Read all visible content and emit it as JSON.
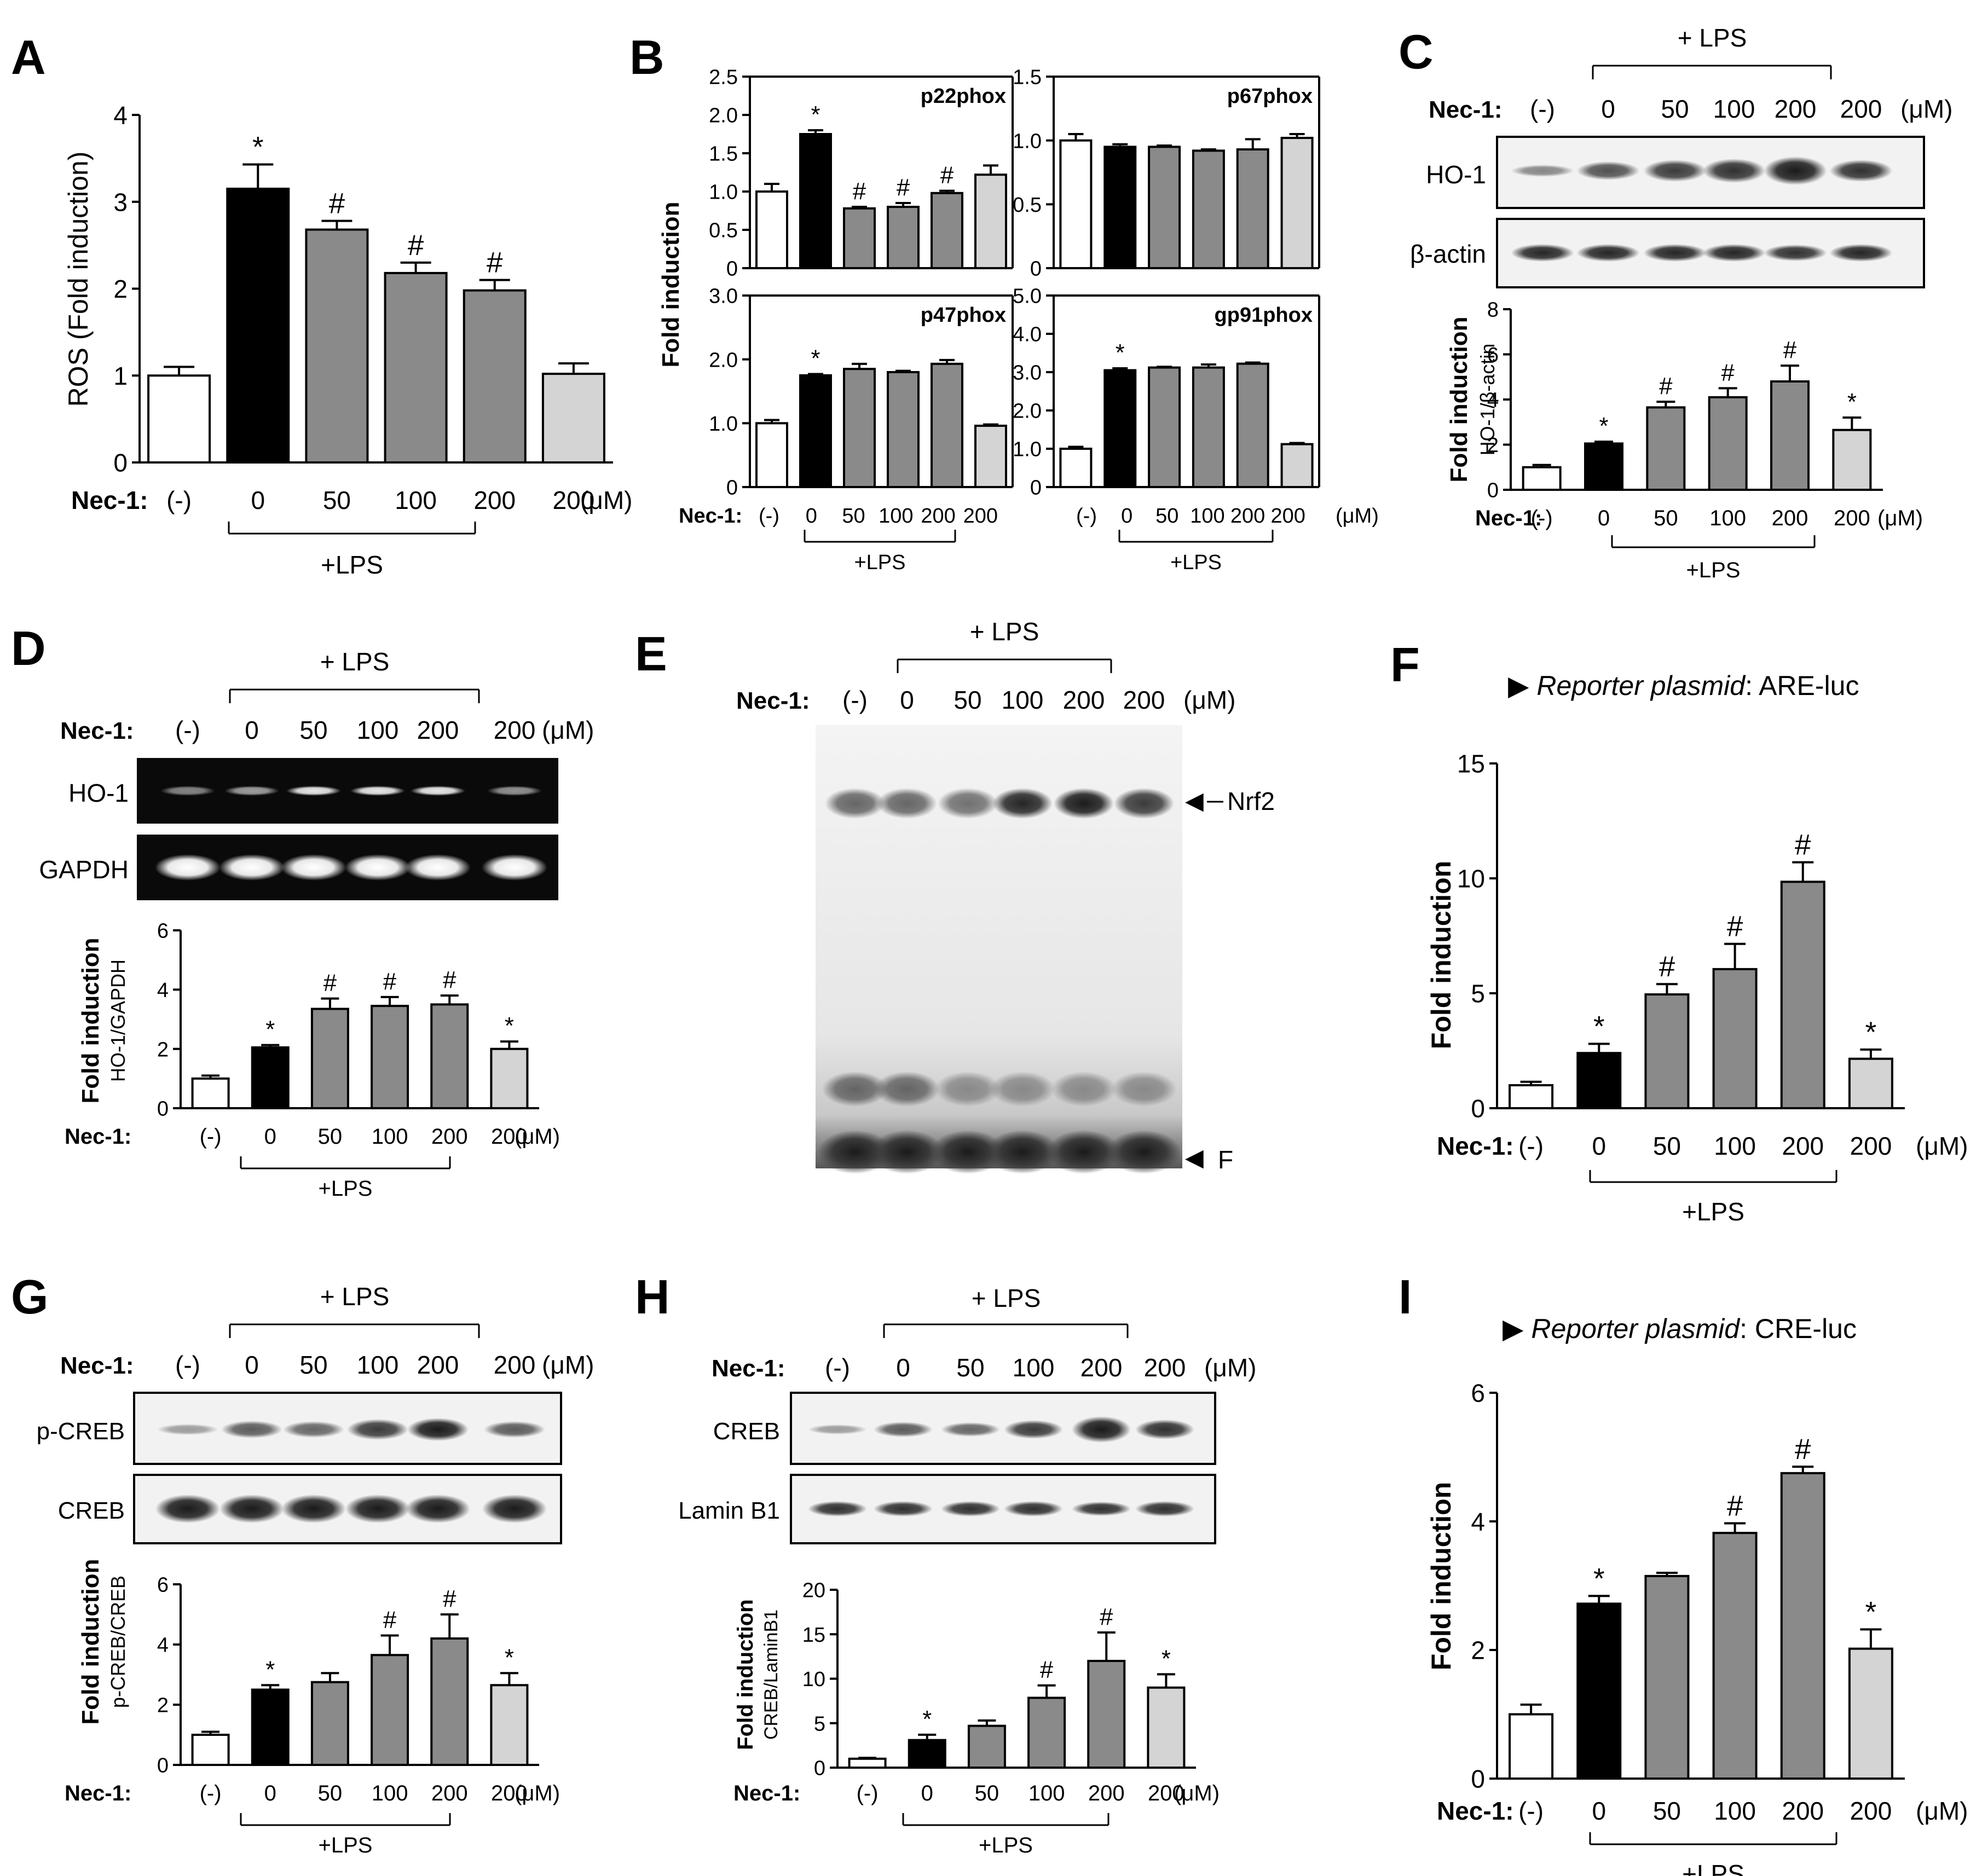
{
  "colors": {
    "white": "#ffffff",
    "black": "#000000",
    "gray": "#8a8a8a",
    "light": "#d4d4d4"
  },
  "common": {
    "nec1_label": "Nec-1:",
    "conc": [
      "(-)",
      "0",
      "50",
      "100",
      "200",
      "200"
    ],
    "unit": "(μM)",
    "plus_lps": "+LPS",
    "plus_lps_sp": "+ LPS"
  },
  "panels": {
    "A": {
      "letter": "A",
      "ylabel": "ROS (Fold induction)"
    },
    "B": {
      "letter": "B",
      "ylabel": "Fold induction"
    },
    "C": {
      "letter": "C",
      "blots": [
        "HO-1",
        "β-actin"
      ],
      "ylabel": "Fold induction",
      "ylabel2": "HO-1/β-actin"
    },
    "D": {
      "letter": "D",
      "blots": [
        "HO-1",
        "GAPDH"
      ],
      "ylabel": "Fold induction",
      "ylabel2": "HO-1/GAPDH"
    },
    "E": {
      "letter": "E",
      "nrf2": "Nrf2",
      "free": "F"
    },
    "F": {
      "letter": "F",
      "reporter_label": "Reporter plasmid",
      "reporter_value": ": ARE-luc",
      "ylabel": "Fold induction"
    },
    "G": {
      "letter": "G",
      "blots": [
        "p-CREB",
        "CREB"
      ],
      "ylabel": "Fold induction",
      "ylabel2": "p-CREB/CREB"
    },
    "H": {
      "letter": "H",
      "blots": [
        "CREB",
        "Lamin B1"
      ],
      "ylabel": "Fold induction",
      "ylabel2": "CREB/LaminB1"
    },
    "I": {
      "letter": "I",
      "reporter_label": "Reporter plasmid",
      "reporter_value": ": CRE-luc",
      "ylabel": "Fold induction"
    }
  },
  "chart_data": [
    {
      "id": "A",
      "type": "bar",
      "categories": [
        "(-)",
        "0",
        "50",
        "100",
        "200",
        "200"
      ],
      "values": [
        1.0,
        3.15,
        2.68,
        2.18,
        1.98,
        1.02
      ],
      "errors": [
        0.1,
        0.28,
        0.1,
        0.12,
        0.12,
        0.12
      ],
      "marks": [
        "",
        "*",
        "#",
        "#",
        "#",
        ""
      ],
      "ylim": [
        0,
        4
      ],
      "yticks": [
        "0",
        "1",
        "2",
        "3",
        "4"
      ]
    },
    {
      "id": "B1",
      "type": "bar",
      "title": "p22phox",
      "categories": [
        "(-)",
        "0",
        "50",
        "100",
        "200",
        "200"
      ],
      "values": [
        1.0,
        1.75,
        0.78,
        0.8,
        0.98,
        1.22
      ],
      "errors": [
        0.1,
        0.05,
        0.02,
        0.05,
        0.03,
        0.12
      ],
      "marks": [
        "",
        "*",
        "#",
        "#",
        "#",
        ""
      ],
      "ylim": [
        0,
        2.5
      ],
      "yticks": [
        "0",
        "0.5",
        "1.0",
        "1.5",
        "2.0",
        "2.5"
      ]
    },
    {
      "id": "B2",
      "type": "bar",
      "title": "p67phox",
      "categories": [
        "(-)",
        "0",
        "50",
        "100",
        "200",
        "200"
      ],
      "values": [
        1.0,
        0.95,
        0.95,
        0.92,
        0.93,
        1.02
      ],
      "errors": [
        0.05,
        0.02,
        0.01,
        0.01,
        0.08,
        0.03
      ],
      "marks": [
        "",
        "",
        "",
        "",
        "",
        ""
      ],
      "ylim": [
        0,
        1.5
      ],
      "yticks": [
        "0",
        "0.5",
        "1.0",
        "1.5"
      ]
    },
    {
      "id": "B3",
      "type": "bar",
      "title": "p47phox",
      "categories": [
        "(-)",
        "0",
        "50",
        "100",
        "200",
        "200"
      ],
      "values": [
        1.0,
        1.75,
        1.85,
        1.8,
        1.93,
        0.96
      ],
      "errors": [
        0.05,
        0.02,
        0.08,
        0.02,
        0.06,
        0.02
      ],
      "marks": [
        "",
        "*",
        "",
        "",
        "",
        ""
      ],
      "ylim": [
        0,
        3.0
      ],
      "yticks": [
        "0",
        "1.0",
        "2.0",
        "3.0"
      ]
    },
    {
      "id": "B4",
      "type": "bar",
      "title": "gp91phox",
      "categories": [
        "(-)",
        "0",
        "50",
        "100",
        "200",
        "200"
      ],
      "values": [
        1.0,
        3.05,
        3.12,
        3.12,
        3.22,
        1.12
      ],
      "errors": [
        0.05,
        0.05,
        0.02,
        0.08,
        0.03,
        0.03
      ],
      "marks": [
        "",
        "*",
        "",
        "",
        "",
        ""
      ],
      "ylim": [
        0,
        5.0
      ],
      "yticks": [
        "0",
        "1.0",
        "2.0",
        "3.0",
        "4.0",
        "5.0"
      ]
    },
    {
      "id": "C",
      "type": "bar",
      "categories": [
        "(-)",
        "0",
        "50",
        "100",
        "200",
        "200"
      ],
      "values": [
        1.0,
        2.05,
        3.65,
        4.1,
        4.8,
        2.65
      ],
      "errors": [
        0.1,
        0.08,
        0.25,
        0.4,
        0.7,
        0.55
      ],
      "marks": [
        "",
        "*",
        "#",
        "#",
        "#",
        "*"
      ],
      "ylim": [
        0,
        8
      ],
      "yticks": [
        "0",
        "2",
        "4",
        "6",
        "8"
      ]
    },
    {
      "id": "D",
      "type": "bar",
      "categories": [
        "(-)",
        "0",
        "50",
        "100",
        "200",
        "200"
      ],
      "values": [
        1.0,
        2.05,
        3.35,
        3.45,
        3.5,
        2.0
      ],
      "errors": [
        0.1,
        0.08,
        0.35,
        0.3,
        0.3,
        0.25
      ],
      "marks": [
        "",
        "*",
        "#",
        "#",
        "#",
        "*"
      ],
      "ylim": [
        0,
        6
      ],
      "yticks": [
        "0",
        "2",
        "4",
        "6"
      ]
    },
    {
      "id": "F",
      "type": "bar",
      "categories": [
        "(-)",
        "0",
        "50",
        "100",
        "200",
        "200"
      ],
      "values": [
        1.0,
        2.4,
        4.95,
        6.05,
        9.85,
        2.15
      ],
      "errors": [
        0.15,
        0.4,
        0.45,
        1.1,
        0.85,
        0.4
      ],
      "marks": [
        "",
        "*",
        "#",
        "#",
        "#",
        "*"
      ],
      "ylim": [
        0,
        15
      ],
      "yticks": [
        "0",
        "5",
        "10",
        "15"
      ]
    },
    {
      "id": "G",
      "type": "bar",
      "categories": [
        "(-)",
        "0",
        "50",
        "100",
        "200",
        "200"
      ],
      "values": [
        1.0,
        2.5,
        2.75,
        3.65,
        4.2,
        2.65
      ],
      "errors": [
        0.1,
        0.15,
        0.3,
        0.65,
        0.8,
        0.4
      ],
      "marks": [
        "",
        "*",
        "",
        "#",
        "#",
        "*"
      ],
      "ylim": [
        0,
        6
      ],
      "yticks": [
        "0",
        "2",
        "4",
        "6"
      ]
    },
    {
      "id": "H",
      "type": "bar",
      "categories": [
        "(-)",
        "0",
        "50",
        "100",
        "200",
        "200"
      ],
      "values": [
        1.0,
        3.1,
        4.7,
        7.85,
        12.0,
        9.0
      ],
      "errors": [
        0.1,
        0.6,
        0.6,
        1.4,
        3.2,
        1.5
      ],
      "marks": [
        "",
        "*",
        "",
        "#",
        "#",
        "*"
      ],
      "ylim": [
        0,
        20
      ],
      "yticks": [
        "0",
        "5",
        "10",
        "15",
        "20"
      ]
    },
    {
      "id": "I",
      "type": "bar",
      "categories": [
        "(-)",
        "0",
        "50",
        "100",
        "200",
        "200"
      ],
      "values": [
        1.0,
        2.72,
        3.15,
        3.82,
        4.75,
        2.02
      ],
      "errors": [
        0.15,
        0.12,
        0.05,
        0.15,
        0.1,
        0.3
      ],
      "marks": [
        "",
        "*",
        "",
        "#",
        "#",
        "*"
      ],
      "ylim": [
        0,
        6
      ],
      "yticks": [
        "0",
        "2",
        "4",
        "6"
      ]
    }
  ]
}
